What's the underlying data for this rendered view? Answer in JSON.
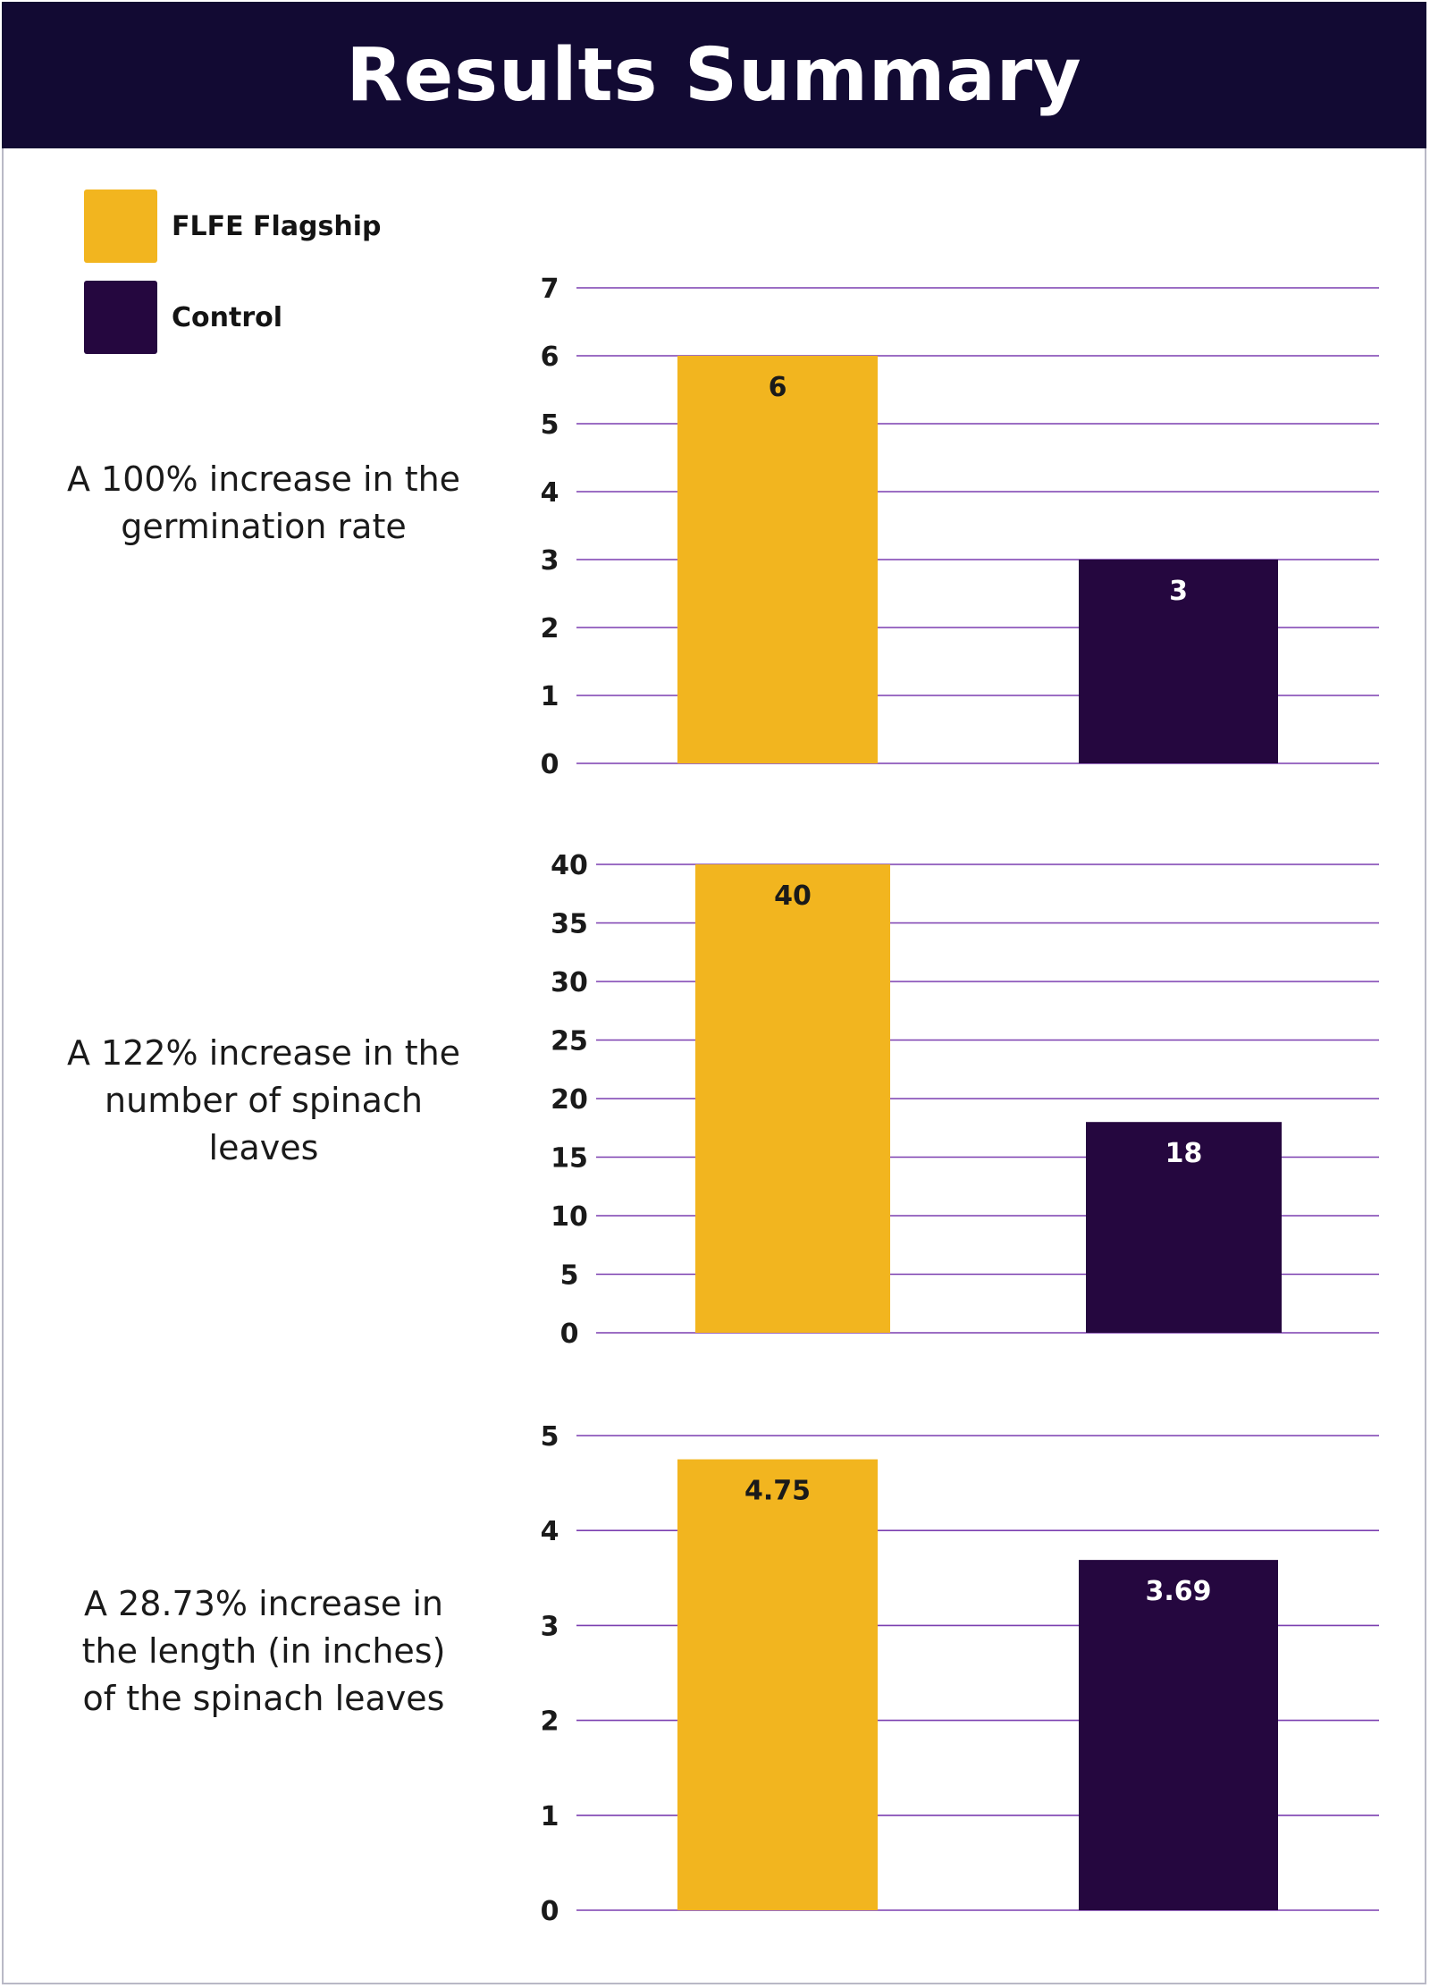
{
  "header": {
    "title": "Results Summary"
  },
  "legend": [
    {
      "label": "FLFE Flagship",
      "color": "#f2b51f"
    },
    {
      "label": "Control",
      "color": "#25073f"
    }
  ],
  "colors": {
    "header_bg": "#120a33",
    "gridline": "#7b3fb0",
    "flagship": "#f2b51f",
    "control": "#25073f"
  },
  "captions": [
    "A 100% increase in the germination rate",
    "A 122% increase in the number of spinach leaves",
    "A 28.73% increase in the length (in inches) of the spinach leaves"
  ],
  "chart_data": [
    {
      "type": "bar",
      "categories": [
        "FLFE Flagship",
        "Control"
      ],
      "values": [
        6,
        3
      ],
      "value_labels": [
        "6",
        "3"
      ],
      "ylim": [
        0,
        7
      ],
      "yticks": [
        0,
        1,
        2,
        3,
        4,
        5,
        6,
        7
      ],
      "grid": true,
      "legend": "top-left"
    },
    {
      "type": "bar",
      "categories": [
        "FLFE Flagship",
        "Control"
      ],
      "values": [
        40,
        18
      ],
      "value_labels": [
        "40",
        "18"
      ],
      "ylim": [
        0,
        40
      ],
      "yticks": [
        0,
        5,
        10,
        15,
        20,
        25,
        30,
        35,
        40
      ],
      "grid": true,
      "legend": "top-left"
    },
    {
      "type": "bar",
      "categories": [
        "FLFE Flagship",
        "Control"
      ],
      "values": [
        4.75,
        3.69
      ],
      "value_labels": [
        "4.75",
        "3.69"
      ],
      "ylim": [
        0,
        5
      ],
      "yticks": [
        0,
        1,
        2,
        3,
        4,
        5
      ],
      "grid": true,
      "legend": "top-left"
    }
  ]
}
